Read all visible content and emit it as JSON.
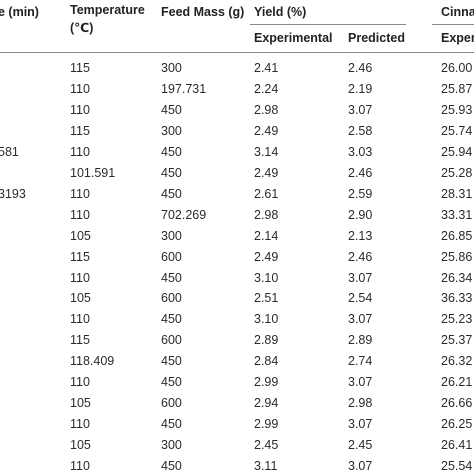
{
  "table": {
    "header": {
      "time": "e (min)",
      "temperature": "Temperature",
      "temperature_unit": "(℃)",
      "feed_mass": "Feed Mass (g)",
      "yield": "Yield (%)",
      "yield_experimental": "Experimental",
      "yield_predicted": "Predicted",
      "cinna": "Cinna",
      "cinna_experimental": "Experi"
    },
    "rows": [
      {
        "cells": [
          "115",
          "300",
          "2.41",
          "2.46",
          "26.00"
        ]
      },
      {
        "cells": [
          "110",
          "197.731",
          "2.24",
          "2.19",
          "25.87"
        ]
      },
      {
        "cells": [
          "110",
          "450",
          "2.98",
          "3.07",
          "25.93"
        ]
      },
      {
        "cells": [
          "115",
          "300",
          "2.49",
          "2.58",
          "25.74"
        ]
      },
      {
        "time": "581",
        "cells": [
          "110",
          "450",
          "3.14",
          "3.03",
          "25.94"
        ]
      },
      {
        "cells": [
          "101.591",
          "450",
          "2.49",
          "2.46",
          "25.28"
        ]
      },
      {
        "time": "3193",
        "cells": [
          "110",
          "450",
          "2.61",
          "2.59",
          "28.31"
        ]
      },
      {
        "cells": [
          "110",
          "702.269",
          "2.98",
          "2.90",
          "33.31"
        ]
      },
      {
        "cells": [
          "105",
          "300",
          "2.14",
          "2.13",
          "26.85"
        ]
      },
      {
        "cells": [
          "115",
          "600",
          "2.49",
          "2.46",
          "25.86"
        ]
      },
      {
        "cells": [
          "110",
          "450",
          "3.10",
          "3.07",
          "26.34"
        ]
      },
      {
        "cells": [
          "105",
          "600",
          "2.51",
          "2.54",
          "36.33"
        ]
      },
      {
        "cells": [
          "110",
          "450",
          "3.10",
          "3.07",
          "25.23"
        ]
      },
      {
        "cells": [
          "115",
          "600",
          "2.89",
          "2.89",
          "25.37"
        ]
      },
      {
        "cells": [
          "118.409",
          "450",
          "2.84",
          "2.74",
          "26.32"
        ]
      },
      {
        "cells": [
          "110",
          "450",
          "2.99",
          "3.07",
          "26.21"
        ]
      },
      {
        "cells": [
          "105",
          "600",
          "2.94",
          "2.98",
          "26.66"
        ]
      },
      {
        "cells": [
          "110",
          "450",
          "2.99",
          "3.07",
          "26.25"
        ]
      },
      {
        "cells": [
          "105",
          "300",
          "2.45",
          "2.45",
          "26.41"
        ]
      },
      {
        "cells": [
          "110",
          "450",
          "3.11",
          "3.07",
          "25.54"
        ]
      }
    ]
  }
}
